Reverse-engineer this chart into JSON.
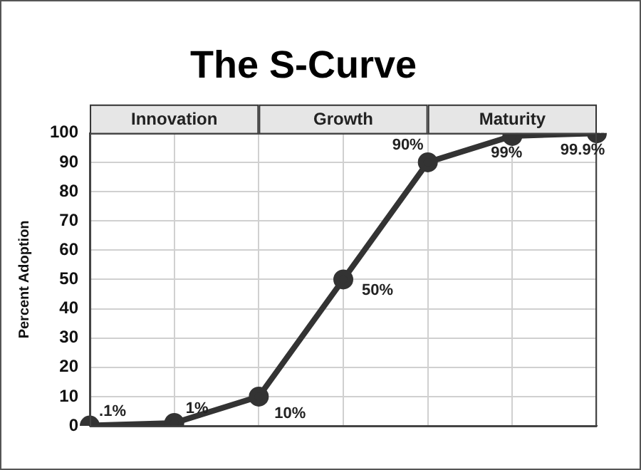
{
  "chart_data": {
    "type": "line",
    "title": "The S-Curve",
    "ylabel": "Percent Adoption",
    "categories": [
      null,
      null,
      null,
      null,
      null,
      null,
      null
    ],
    "values": [
      0.1,
      1,
      10,
      50,
      90,
      99,
      99.9
    ],
    "value_labels": [
      ".1%",
      "1%",
      "10%",
      "50%",
      "90%",
      "99%",
      "99.9%"
    ],
    "color": "#333333",
    "marker": "circle",
    "line_style": "solid",
    "ylim": [
      0,
      100
    ],
    "yticks": [
      0,
      10,
      20,
      30,
      40,
      50,
      60,
      70,
      80,
      90,
      100
    ],
    "annotations": [
      "Innovation",
      "Growth",
      "Maturity"
    ],
    "grid": true,
    "legend": false,
    "tick_labels": "y"
  }
}
